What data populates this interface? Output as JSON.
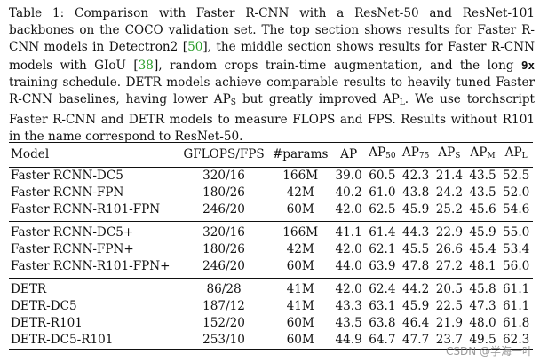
{
  "caption": {
    "t1": "Table 1: Comparison with Faster R-CNN with a ResNet-50 and ResNet-101 backbones on the COCO validation set. The top section shows results for Faster R-CNN models in Detectron2 [",
    "ref1": "50",
    "t2": "], the middle section shows results for Faster R-CNN models with GIoU [",
    "ref2": "38",
    "t3": "], random crops train-time augmentation, and the long ",
    "code": "9x",
    "t4": " training schedule. DETR models achieve comparable results to heavily tuned Faster R-CNN baselines, having lower AP",
    "sub1": "S",
    "t5": " but greatly improved AP",
    "sub2": "L",
    "t6": ". We use torchscript Faster R-CNN and DETR models to measure FLOPS and FPS. Results without R101 in the name correspond to ResNet-50."
  },
  "table": {
    "headers": {
      "model": "Model",
      "gflops": "GFLOPS/FPS",
      "params": "#params",
      "ap": "AP",
      "ap50": "AP",
      "ap50_sub": "50",
      "ap75": "AP",
      "ap75_sub": "75",
      "aps": "AP",
      "aps_sub": "S",
      "apm": "AP",
      "apm_sub": "M",
      "apl": "AP",
      "apl_sub": "L"
    },
    "rows": [
      [
        "Faster RCNN-DC5",
        "320/16",
        "166M",
        "39.0",
        "60.5",
        "42.3",
        "21.4",
        "43.5",
        "52.5"
      ],
      [
        "Faster RCNN-FPN",
        "180/26",
        "42M",
        "40.2",
        "61.0",
        "43.8",
        "24.2",
        "43.5",
        "52.0"
      ],
      [
        "Faster RCNN-R101-FPN",
        "246/20",
        "60M",
        "42.0",
        "62.5",
        "45.9",
        "25.2",
        "45.6",
        "54.6"
      ],
      [
        "Faster RCNN-DC5+",
        "320/16",
        "166M",
        "41.1",
        "61.4",
        "44.3",
        "22.9",
        "45.9",
        "55.0"
      ],
      [
        "Faster RCNN-FPN+",
        "180/26",
        "42M",
        "42.0",
        "62.1",
        "45.5",
        "26.6",
        "45.4",
        "53.4"
      ],
      [
        "Faster RCNN-R101-FPN+",
        "246/20",
        "60M",
        "44.0",
        "63.9",
        "47.8",
        "27.2",
        "48.1",
        "56.0"
      ],
      [
        "DETR",
        "86/28",
        "41M",
        "42.0",
        "62.4",
        "44.2",
        "20.5",
        "45.8",
        "61.1"
      ],
      [
        "DETR-DC5",
        "187/12",
        "41M",
        "43.3",
        "63.1",
        "45.9",
        "22.5",
        "47.3",
        "61.1"
      ],
      [
        "DETR-R101",
        "152/20",
        "60M",
        "43.5",
        "63.8",
        "46.4",
        "21.9",
        "48.0",
        "61.8"
      ],
      [
        "DETR-DC5-R101",
        "253/10",
        "60M",
        "44.9",
        "64.7",
        "47.7",
        "23.7",
        "49.5",
        "62.3"
      ]
    ]
  },
  "watermark": "CSDN @学海一叶"
}
